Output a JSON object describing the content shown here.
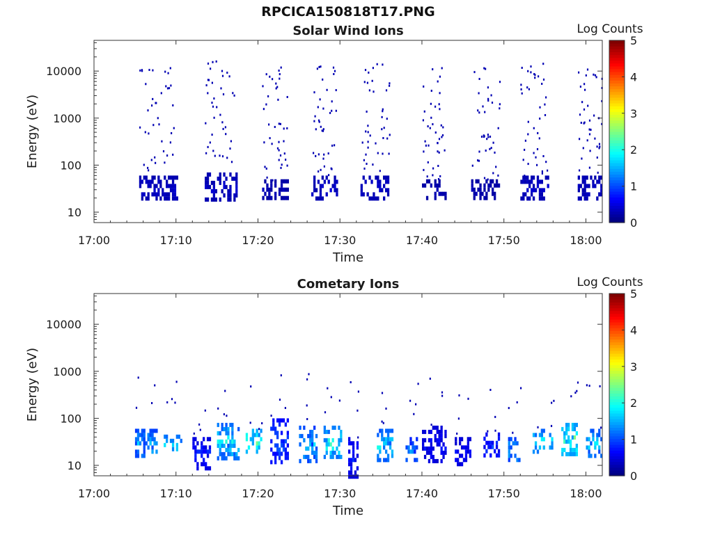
{
  "figure_title": "RPCICA150818T17.PNG",
  "chart_data": [
    {
      "type": "heatmap",
      "title": "Solar Wind Ions",
      "xlabel": "Time",
      "ylabel": "Energy (eV)",
      "x_ticks": [
        "17:00",
        "17:10",
        "17:20",
        "17:30",
        "17:40",
        "17:50",
        "18:00"
      ],
      "x_range_minutes": [
        0,
        62
      ],
      "y_scale": "log",
      "y_range": [
        6,
        45000
      ],
      "y_ticks": [
        10,
        100,
        1000,
        10000
      ],
      "y_tick_labels": [
        "10",
        "100",
        "1000",
        "10000"
      ],
      "colorbar": {
        "label": "Log Counts",
        "range": [
          0,
          5
        ],
        "ticks": [
          "0",
          "1",
          "2",
          "3",
          "4",
          "5"
        ],
        "colormap": "jet"
      },
      "bursts": [
        {
          "t_start": 5.5,
          "t_end": 10.0,
          "e_low": 20,
          "e_high": 60,
          "log_counts": 0.4
        },
        {
          "t_start": 13.5,
          "t_end": 17.3,
          "e_low": 20,
          "e_high": 70,
          "log_counts": 0.4
        },
        {
          "t_start": 20.5,
          "t_end": 23.5,
          "e_low": 20,
          "e_high": 50,
          "log_counts": 0.3
        },
        {
          "t_start": 26.5,
          "t_end": 29.5,
          "e_low": 20,
          "e_high": 60,
          "log_counts": 0.4
        },
        {
          "t_start": 32.5,
          "t_end": 36.0,
          "e_low": 20,
          "e_high": 60,
          "log_counts": 0.4
        },
        {
          "t_start": 40.0,
          "t_end": 43.0,
          "e_low": 20,
          "e_high": 50,
          "log_counts": 0.3
        },
        {
          "t_start": 46.0,
          "t_end": 49.5,
          "e_low": 20,
          "e_high": 50,
          "log_counts": 0.3
        },
        {
          "t_start": 52.0,
          "t_end": 55.5,
          "e_low": 20,
          "e_high": 60,
          "log_counts": 0.4
        },
        {
          "t_start": 59.0,
          "t_end": 62.0,
          "e_low": 20,
          "e_high": 60,
          "log_counts": 0.4
        }
      ]
    },
    {
      "type": "heatmap",
      "title": "Cometary Ions",
      "xlabel": "Time",
      "ylabel": "Energy (eV)",
      "x_ticks": [
        "17:00",
        "17:10",
        "17:20",
        "17:30",
        "17:40",
        "17:50",
        "18:00"
      ],
      "x_range_minutes": [
        0,
        62
      ],
      "y_scale": "log",
      "y_range": [
        6,
        45000
      ],
      "y_ticks": [
        10,
        100,
        1000,
        10000
      ],
      "y_tick_labels": [
        "10",
        "100",
        "1000",
        "10000"
      ],
      "colorbar": {
        "label": "Log Counts",
        "range": [
          0,
          5
        ],
        "ticks": [
          "0",
          "1",
          "2",
          "3",
          "4",
          "5"
        ],
        "colormap": "jet"
      },
      "bursts": [
        {
          "t_start": 5.0,
          "t_end": 7.5,
          "e_low": 15,
          "e_high": 60,
          "log_counts": 1.6
        },
        {
          "t_start": 8.5,
          "t_end": 10.5,
          "e_low": 20,
          "e_high": 45,
          "log_counts": 1.9
        },
        {
          "t_start": 12.0,
          "t_end": 14.0,
          "e_low": 9,
          "e_high": 40,
          "log_counts": 0.8
        },
        {
          "t_start": 15.0,
          "t_end": 17.5,
          "e_low": 15,
          "e_high": 80,
          "log_counts": 1.9
        },
        {
          "t_start": 18.5,
          "t_end": 20.5,
          "e_low": 20,
          "e_high": 60,
          "log_counts": 2.3
        },
        {
          "t_start": 21.5,
          "t_end": 23.5,
          "e_low": 12,
          "e_high": 100,
          "log_counts": 1.1
        },
        {
          "t_start": 25.0,
          "t_end": 27.0,
          "e_low": 12,
          "e_high": 70,
          "log_counts": 1.6
        },
        {
          "t_start": 28.0,
          "t_end": 30.0,
          "e_low": 15,
          "e_high": 70,
          "log_counts": 2.0
        },
        {
          "t_start": 31.0,
          "t_end": 32.5,
          "e_low": 6,
          "e_high": 40,
          "log_counts": 0.8
        },
        {
          "t_start": 34.5,
          "t_end": 36.5,
          "e_low": 12,
          "e_high": 60,
          "log_counts": 1.8
        },
        {
          "t_start": 38.0,
          "t_end": 39.5,
          "e_low": 12,
          "e_high": 40,
          "log_counts": 1.3
        },
        {
          "t_start": 40.0,
          "t_end": 43.0,
          "e_low": 12,
          "e_high": 70,
          "log_counts": 0.7
        },
        {
          "t_start": 44.0,
          "t_end": 46.0,
          "e_low": 10,
          "e_high": 40,
          "log_counts": 0.7
        },
        {
          "t_start": 47.5,
          "t_end": 49.5,
          "e_low": 15,
          "e_high": 50,
          "log_counts": 0.9
        },
        {
          "t_start": 50.5,
          "t_end": 52.0,
          "e_low": 12,
          "e_high": 40,
          "log_counts": 1.6
        },
        {
          "t_start": 53.5,
          "t_end": 56.0,
          "e_low": 20,
          "e_high": 60,
          "log_counts": 1.9
        },
        {
          "t_start": 57.0,
          "t_end": 59.0,
          "e_low": 18,
          "e_high": 80,
          "log_counts": 2.4
        },
        {
          "t_start": 60.0,
          "t_end": 62.0,
          "e_low": 15,
          "e_high": 60,
          "log_counts": 1.7
        }
      ]
    }
  ]
}
